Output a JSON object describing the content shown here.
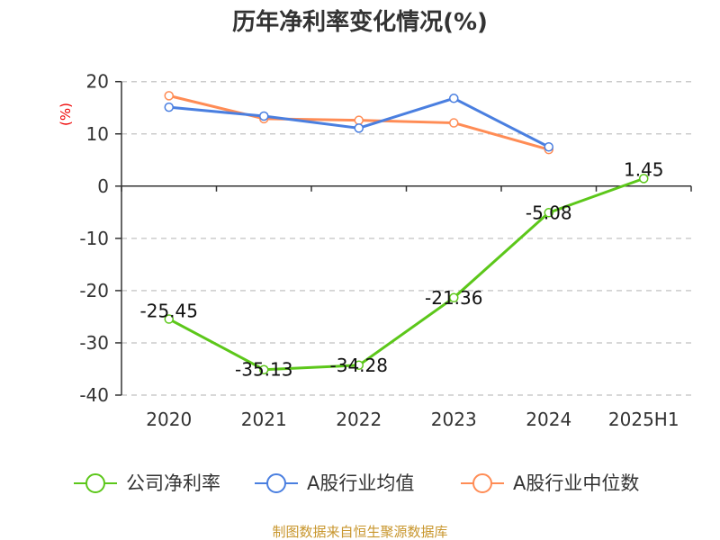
{
  "chart_data": {
    "type": "line",
    "title": "历年净利率变化情况(%)",
    "ylabel": "(%)",
    "categories": [
      "2020",
      "2021",
      "2022",
      "2023",
      "2024",
      "2025H1"
    ],
    "ylim": [
      -40,
      20
    ],
    "yticks": [
      20,
      10,
      0,
      -10,
      -20,
      -30,
      -40
    ],
    "grid": true,
    "legend_position": "bottom",
    "series": [
      {
        "name": "公司净利率",
        "color": "#5cc71a",
        "values": [
          -25.45,
          -35.13,
          -34.28,
          -21.36,
          -5.08,
          1.45
        ],
        "labels": [
          "-25.45",
          "-35.13",
          "-34.28",
          "-21.36",
          "-5.08",
          "1.45"
        ]
      },
      {
        "name": "A股行业均值",
        "color": "#4a7fe0",
        "values": [
          15.1,
          13.4,
          11.1,
          16.8,
          7.5,
          null
        ]
      },
      {
        "name": "A股行业中位数",
        "color": "#ff8c55",
        "values": [
          17.3,
          12.9,
          12.6,
          12.1,
          7.0,
          null
        ]
      }
    ],
    "source": "制图数据来自恒生聚源数据库"
  }
}
